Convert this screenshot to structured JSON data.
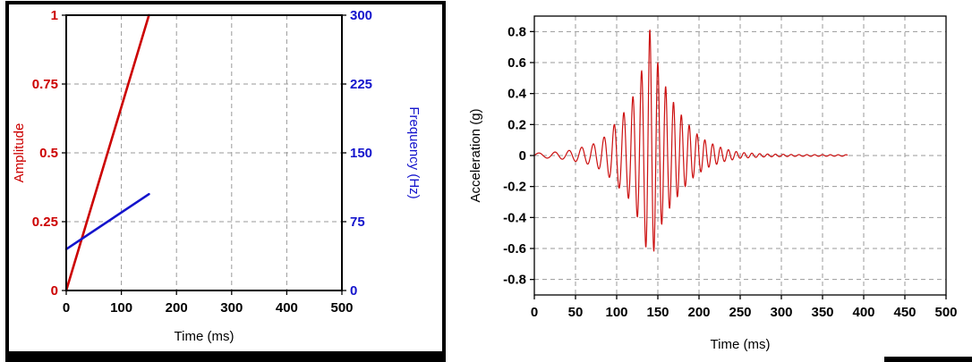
{
  "page": {
    "background": "#ffffff",
    "frame_color": "#000000"
  },
  "chart_data": [
    {
      "id": "sweep-profile",
      "type": "line",
      "title": "",
      "xlabel": "Time (ms)",
      "xlim": [
        0,
        500
      ],
      "xticks": [
        0,
        100,
        200,
        300,
        400,
        500
      ],
      "ylabel_left": "Amplitude",
      "ylabel_left_color": "#cc0000",
      "ylim_left": [
        0,
        1
      ],
      "yticks_left": [
        0,
        0.25,
        0.5,
        0.75,
        1
      ],
      "ytick_labels_left": [
        "0",
        "0.25",
        "0.5",
        "0.75",
        "1"
      ],
      "ylabel_right": "Frequency (Hz)",
      "ylabel_right_color": "#1414cc",
      "ylim_right": [
        0,
        300
      ],
      "yticks_right": [
        0,
        75,
        150,
        225,
        300
      ],
      "grid": true,
      "legend": "none",
      "series": [
        {
          "name": "Amplitude",
          "axis": "left",
          "color": "#cc0000",
          "width": 2.6,
          "points": [
            [
              0,
              0
            ],
            [
              150,
              1
            ]
          ]
        },
        {
          "name": "Frequency",
          "axis": "right",
          "color": "#1414cc",
          "width": 2.6,
          "points": [
            [
              0,
              45
            ],
            [
              150,
              105
            ]
          ]
        }
      ]
    },
    {
      "id": "acceleration-burst",
      "type": "line",
      "title": "",
      "xlabel": "Time (ms)",
      "xlim": [
        0,
        500
      ],
      "xticks": [
        0,
        50,
        100,
        150,
        200,
        250,
        300,
        350,
        400,
        450,
        500
      ],
      "ylabel": "Acceleration (g)",
      "ylim": [
        -0.9,
        0.9
      ],
      "yticks": [
        -0.8,
        -0.6,
        -0.4,
        -0.2,
        0,
        0.2,
        0.4,
        0.6,
        0.8
      ],
      "grid": true,
      "legend": "none",
      "series": [
        {
          "name": "Acceleration",
          "color": "#cc1111",
          "width": 1.2,
          "signal": {
            "type": "swept_sine_burst",
            "t_start_ms": 0,
            "t_end_ms": 380,
            "dt_ms": 0.4,
            "freq_start_hz": 45,
            "freq_end_hz": 105,
            "sweep_end_ms": 150,
            "peak_g": 0.82,
            "min_g": -0.72,
            "negative_scale": 0.88,
            "envelope_keypoints": [
              [
                0,
                0.015
              ],
              [
                20,
                0.02
              ],
              [
                40,
                0.03
              ],
              [
                55,
                0.05
              ],
              [
                70,
                0.07
              ],
              [
                85,
                0.12
              ],
              [
                100,
                0.22
              ],
              [
                115,
                0.32
              ],
              [
                125,
                0.45
              ],
              [
                133,
                0.6
              ],
              [
                140,
                0.82
              ],
              [
                147,
                0.66
              ],
              [
                155,
                0.5
              ],
              [
                165,
                0.38
              ],
              [
                180,
                0.25
              ],
              [
                195,
                0.15
              ],
              [
                210,
                0.09
              ],
              [
                230,
                0.045
              ],
              [
                250,
                0.02
              ],
              [
                280,
                0.01
              ],
              [
                320,
                0.006
              ],
              [
                380,
                0.005
              ]
            ]
          }
        }
      ]
    }
  ]
}
